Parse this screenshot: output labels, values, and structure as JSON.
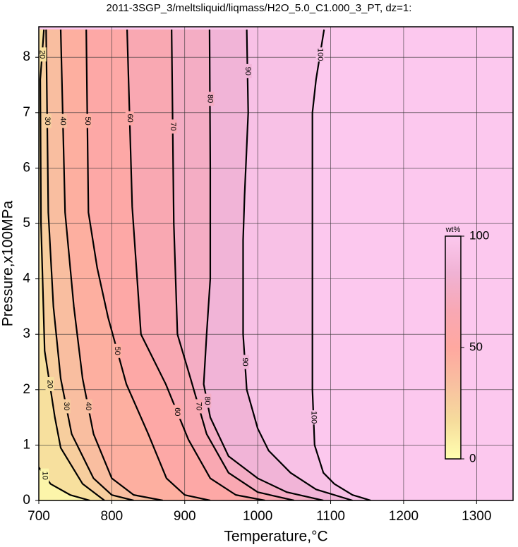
{
  "chart_data": {
    "type": "contour",
    "title": "2011-3SGP_3/meltsliquid/liqmass/H2O_5.0_C1.000_3_PT, dz=1:",
    "xlabel": "Temperature,°C",
    "ylabel": "Pressure,x100MPa",
    "xlim": [
      700,
      1350
    ],
    "ylim": [
      0,
      8.55
    ],
    "xticks": [
      700,
      800,
      900,
      1000,
      1100,
      1200,
      1300
    ],
    "yticks": [
      0,
      1,
      2,
      3,
      4,
      5,
      6,
      7,
      8
    ],
    "grid": true,
    "colorscale": [
      "#ffffb0",
      "#f6dc9c",
      "#f8c0a0",
      "#ffa8a0",
      "#f8a8b4",
      "#f0b2d4",
      "#fcc8ee"
    ],
    "colorbar": {
      "label": "wt%",
      "clim": [
        0,
        100
      ],
      "ticks": [
        0,
        50,
        100
      ]
    },
    "contours": [
      {
        "level": 100,
        "x": [
          1091,
          1080,
          1075,
          1075,
          1075,
          1078,
          1090,
          1105,
          1130,
          1155
        ],
        "y": [
          8.5,
          7.6,
          7.0,
          4,
          2,
          1,
          0.5,
          0.3,
          0.1,
          0
        ]
      },
      {
        "level": 90,
        "x": [
          985,
          987,
          982,
          980,
          980,
          985,
          1000,
          1015,
          1045,
          1080,
          1130
        ],
        "y": [
          8.5,
          7,
          5.5,
          4.7,
          3,
          2,
          1.3,
          0.9,
          0.5,
          0.2,
          0
        ]
      },
      {
        "level": 80,
        "x": [
          934,
          935,
          935,
          930,
          926,
          935,
          960,
          1000,
          1040,
          1090
        ],
        "y": [
          8.5,
          6,
          4,
          3,
          2.1,
          1.5,
          0.8,
          0.4,
          0.15,
          0
        ]
      },
      {
        "level": 70,
        "x": [
          882,
          885,
          890,
          908,
          930,
          960,
          1000,
          1050
        ],
        "y": [
          8.5,
          5,
          3,
          2.2,
          1.2,
          0.5,
          0.15,
          0
        ]
      },
      {
        "level": 60,
        "x": [
          821,
          828,
          840,
          874,
          905,
          935,
          970,
          1010
        ],
        "y": [
          8.5,
          5.3,
          3,
          2.1,
          1.1,
          0.4,
          0.1,
          0
        ]
      },
      {
        "level": 50,
        "x": [
          765,
          768,
          780,
          795,
          820,
          850,
          875,
          900,
          935
        ],
        "y": [
          8.5,
          5.2,
          4.2,
          3.3,
          2.1,
          1.2,
          0.4,
          0.1,
          0
        ]
      },
      {
        "level": 40,
        "x": [
          730,
          736,
          748,
          760,
          775,
          800,
          830,
          870
        ],
        "y": [
          8.5,
          5.2,
          3.5,
          2.2,
          1.2,
          0.4,
          0.1,
          0
        ]
      },
      {
        "level": 30,
        "x": [
          710,
          713,
          720,
          730,
          745,
          775,
          800,
          830
        ],
        "y": [
          8.5,
          5.2,
          3.5,
          2.2,
          1.2,
          0.4,
          0.1,
          0
        ]
      },
      {
        "level": 20,
        "x": [
          707,
          702,
          703,
          708,
          722,
          730,
          760,
          790
        ],
        "y": [
          8.5,
          7.6,
          5,
          2.7,
          1.5,
          0.95,
          0.3,
          0
        ]
      },
      {
        "level": 10,
        "x": [
          700,
          716,
          743,
          770
        ],
        "y": [
          0.6,
          0.3,
          0.1,
          0
        ]
      }
    ]
  }
}
